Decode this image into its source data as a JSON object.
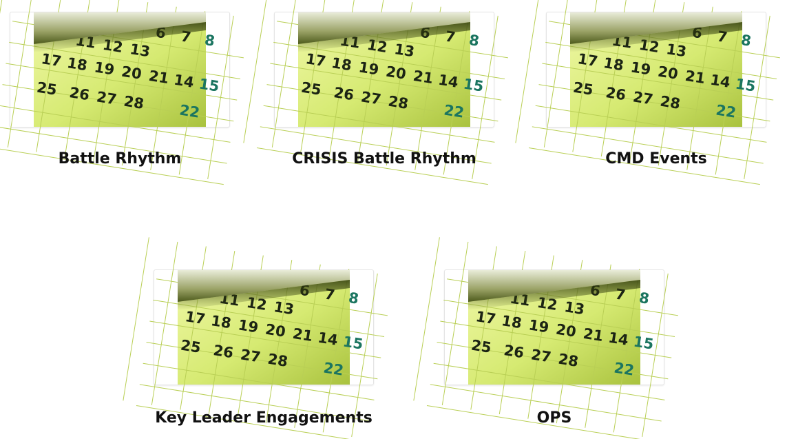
{
  "tiles": [
    {
      "title": "Battle Rhythm",
      "image_icon": "calendar-image"
    },
    {
      "title": "CRISIS Battle Rhythm",
      "image_icon": "calendar-image"
    },
    {
      "title": "CMD Events",
      "image_icon": "calendar-image"
    },
    {
      "title": "Key Leader Engagements",
      "image_icon": "calendar-image"
    },
    {
      "title": "OPS",
      "image_icon": "calendar-image"
    }
  ],
  "calendar": {
    "row1": [
      "6",
      "7",
      "8"
    ],
    "row2": [
      "11",
      "12",
      "13"
    ],
    "row3": [
      "17",
      "18",
      "19",
      "20",
      "21",
      "14",
      "15"
    ],
    "row4": [
      "25",
      "26",
      "27",
      "28",
      "22"
    ]
  },
  "colors": {
    "calendar_paper_light": "#e2f08a",
    "calendar_paper_dark": "#a6c23c",
    "weekend_number": "#1b7560",
    "title_text": "#111111"
  }
}
